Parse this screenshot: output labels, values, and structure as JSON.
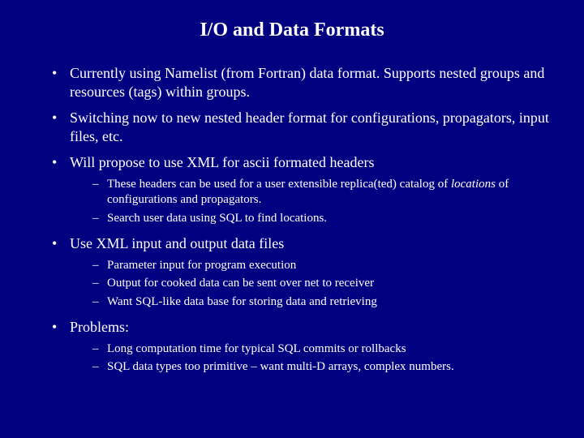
{
  "background_color": "#000080",
  "text_color": "#ffffff",
  "title": "I/O and Data Formats",
  "title_fontsize": 24,
  "body_fontsize": 18,
  "sub_fontsize": 15,
  "bullets": [
    {
      "text": "Currently using Namelist (from Fortran) data format. Supports nested groups and resources (tags) within groups."
    },
    {
      "text": "Switching now to new nested header format for configurations, propagators, input files, etc."
    },
    {
      "text": "Will propose to use XML for ascii formated headers",
      "sub": [
        {
          "pre": "These headers can be used for a user extensible replica(ted) catalog of ",
          "italic": "locations",
          "post": " of configurations and propagators."
        },
        {
          "pre": "Search user data using SQL to find locations."
        }
      ]
    },
    {
      "text": "Use XML input and output data files",
      "sub": [
        {
          "pre": "Parameter input for program execution"
        },
        {
          "pre": "Output for cooked data can be sent over net to receiver"
        },
        {
          "pre": "Want SQL-like data base for storing data and retrieving"
        }
      ]
    },
    {
      "text": "Problems:",
      "sub": [
        {
          "pre": "Long computation time for typical SQL commits or rollbacks"
        },
        {
          "pre": "SQL data types too primitive – want multi-D arrays, complex numbers."
        }
      ]
    }
  ]
}
